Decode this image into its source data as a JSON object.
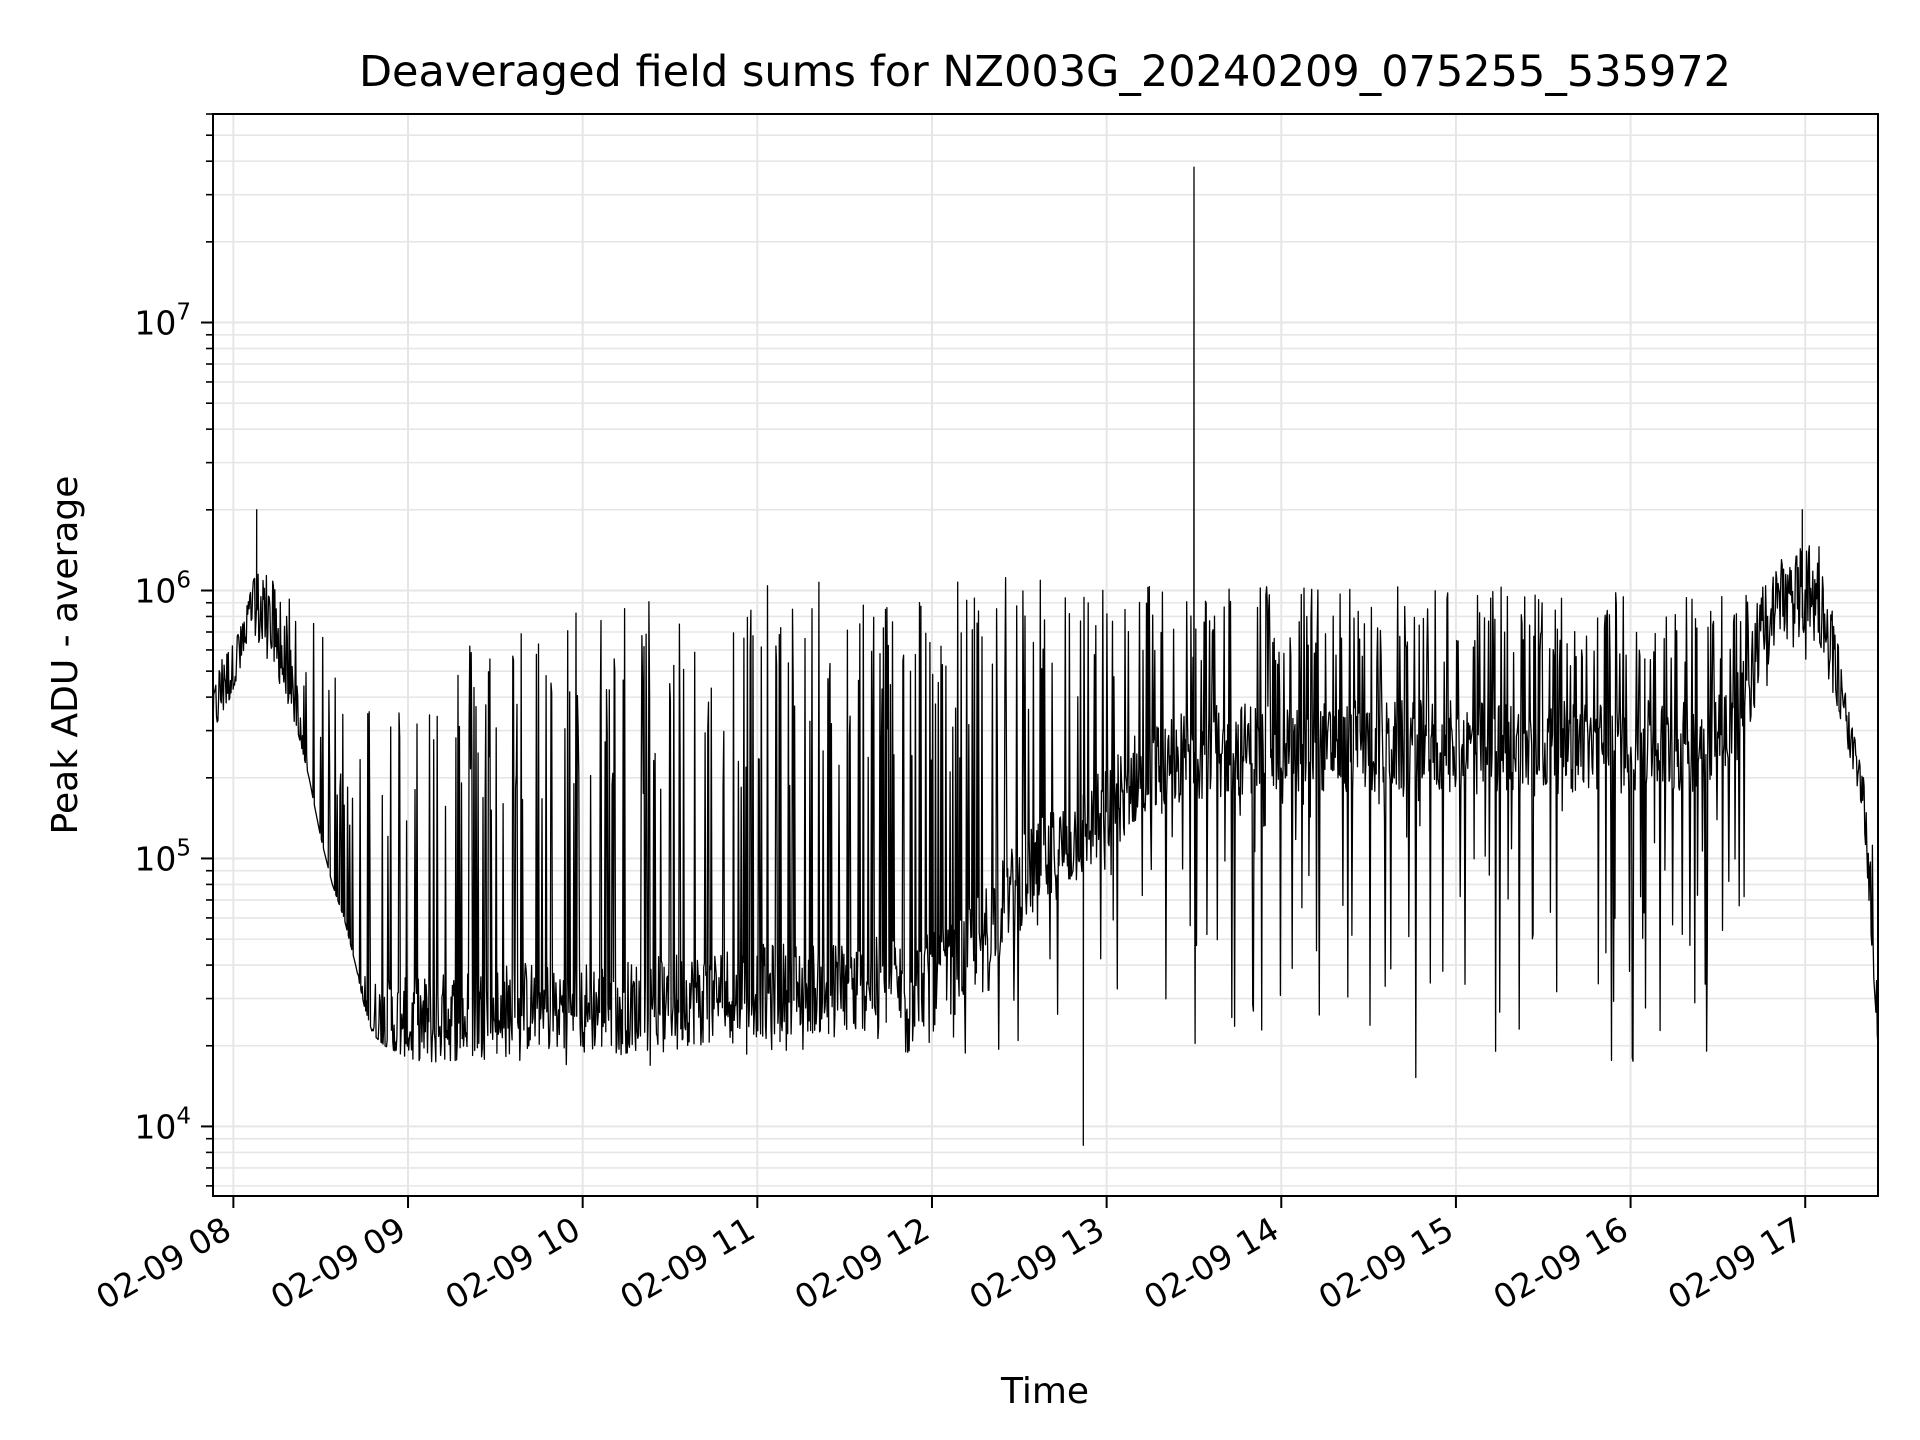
{
  "chart_data": {
    "type": "line",
    "title": "Deaveraged field sums for NZ003G_20240209_075255_535972",
    "xlabel": "Time",
    "ylabel": "Peak ADU - average",
    "yscale": "log",
    "ylim": [
      5500,
      60000000
    ],
    "xlim": [
      "2024-02-09 07:53",
      "2024-02-09 17:25"
    ],
    "x_tick_labels": [
      "02-09 08",
      "02-09 09",
      "02-09 10",
      "02-09 11",
      "02-09 12",
      "02-09 13",
      "02-09 14",
      "02-09 15",
      "02-09 16",
      "02-09 17"
    ],
    "y_tick_labels": [
      {
        "base": "10",
        "exp": "4",
        "value": 10000
      },
      {
        "base": "10",
        "exp": "5",
        "value": 100000
      },
      {
        "base": "10",
        "exp": "6",
        "value": 1000000
      },
      {
        "base": "10",
        "exp": "7",
        "value": 10000000
      }
    ],
    "grid": true,
    "line_color": "#000000",
    "series": [
      {
        "x": [
          "2024-02-09 07:53",
          "2024-02-09 07:56",
          "2024-02-09 07:59",
          "2024-02-09 08:02",
          "2024-02-09 08:05",
          "2024-02-09 08:07",
          "2024-02-09 08:10",
          "2024-02-09 08:14",
          "2024-02-09 08:18",
          "2024-02-09 08:22",
          "2024-02-09 08:26",
          "2024-02-09 08:30",
          "2024-02-09 08:34",
          "2024-02-09 08:38",
          "2024-02-09 08:42",
          "2024-02-09 08:45",
          "2024-02-09 08:48",
          "2024-02-09 08:52",
          "2024-02-09 08:56",
          "2024-02-09 09:00",
          "2024-02-09 09:10",
          "2024-02-09 09:20",
          "2024-02-09 09:30",
          "2024-02-09 09:40",
          "2024-02-09 09:50",
          "2024-02-09 10:00",
          "2024-02-09 10:10",
          "2024-02-09 10:20",
          "2024-02-09 10:30",
          "2024-02-09 10:40",
          "2024-02-09 10:50",
          "2024-02-09 11:00",
          "2024-02-09 11:10",
          "2024-02-09 11:20",
          "2024-02-09 11:30",
          "2024-02-09 11:40",
          "2024-02-09 11:50",
          "2024-02-09 12:00",
          "2024-02-09 12:10",
          "2024-02-09 12:20",
          "2024-02-09 12:30",
          "2024-02-09 12:40",
          "2024-02-09 12:50",
          "2024-02-09 13:00",
          "2024-02-09 13:10",
          "2024-02-09 13:20",
          "2024-02-09 13:30",
          "2024-02-09 13:40",
          "2024-02-09 13:50",
          "2024-02-09 14:00",
          "2024-02-09 14:10",
          "2024-02-09 14:20",
          "2024-02-09 14:30",
          "2024-02-09 14:40",
          "2024-02-09 14:50",
          "2024-02-09 15:00",
          "2024-02-09 15:10",
          "2024-02-09 15:20",
          "2024-02-09 15:30",
          "2024-02-09 15:40",
          "2024-02-09 15:50",
          "2024-02-09 16:00",
          "2024-02-09 16:10",
          "2024-02-09 16:20",
          "2024-02-09 16:30",
          "2024-02-09 16:40",
          "2024-02-09 16:45",
          "2024-02-09 16:50",
          "2024-02-09 16:55",
          "2024-02-09 17:00",
          "2024-02-09 17:05",
          "2024-02-09 17:10",
          "2024-02-09 17:15",
          "2024-02-09 17:20",
          "2024-02-09 17:25"
        ],
        "y_low": [
          300000,
          350000,
          400000,
          500000,
          600000,
          700000,
          600000,
          500000,
          400000,
          300000,
          200000,
          120000,
          80000,
          60000,
          40000,
          28000,
          22000,
          20000,
          19000,
          18000,
          17000,
          18000,
          17000,
          17000,
          17000,
          17000,
          16000,
          16000,
          18000,
          18000,
          18000,
          18000,
          18000,
          18000,
          18000,
          18000,
          18000,
          17000,
          17000,
          17000,
          18000,
          18000,
          17000,
          17000,
          18000,
          18000,
          17000,
          17000,
          16000,
          16000,
          16000,
          16000,
          16000,
          15000,
          15000,
          16000,
          16000,
          16000,
          16000,
          17000,
          16000,
          16000,
          16000,
          16000,
          20000,
          40000,
          400000,
          500000,
          500000,
          500000,
          600000,
          400000,
          250000,
          150000,
          20000
        ],
        "y_high": [
          400000,
          550000,
          600000,
          700000,
          900000,
          1100000,
          1200000,
          1100000,
          1000000,
          900000,
          800000,
          700000,
          600000,
          500000,
          500000,
          400000,
          500000,
          400000,
          450000,
          500000,
          600000,
          700000,
          800000,
          850000,
          900000,
          950000,
          1000000,
          1000000,
          1000000,
          1000000,
          1050000,
          1050000,
          1050000,
          1100000,
          1100000,
          1100000,
          1100000,
          1150000,
          1150000,
          1150000,
          1150000,
          1100000,
          1100000,
          1100000,
          1100000,
          1100000,
          1100000,
          1100000,
          1100000,
          1050000,
          1050000,
          1050000,
          1050000,
          1050000,
          1050000,
          1050000,
          1050000,
          1050000,
          1050000,
          1000000,
          1000000,
          1000000,
          1000000,
          1000000,
          1000000,
          1000000,
          1200000,
          1400000,
          1500000,
          1600000,
          1500000,
          800000,
          350000,
          200000,
          80000
        ],
        "y_base": [
          350000,
          450000,
          500000,
          600000,
          700000,
          900000,
          800000,
          700000,
          500000,
          300000,
          150000,
          80000,
          50000,
          35000,
          28000,
          25000,
          24000,
          24000,
          24000,
          24000,
          25000,
          26000,
          27000,
          28000,
          28000,
          28000,
          28000,
          28000,
          30000,
          30000,
          32000,
          32000,
          33000,
          33000,
          33000,
          34000,
          34000,
          35000,
          40000,
          60000,
          80000,
          100000,
          120000,
          150000,
          200000,
          220000,
          250000,
          250000,
          260000,
          260000,
          260000,
          260000,
          260000,
          260000,
          260000,
          260000,
          260000,
          260000,
          260000,
          260000,
          260000,
          260000,
          260000,
          260000,
          300000,
          400000,
          700000,
          800000,
          900000,
          1000000,
          900000,
          500000,
          250000,
          150000,
          20000
        ]
      }
    ],
    "annotations": [
      {
        "x": "2024-02-09 13:30",
        "y": 38000000,
        "note": "spike"
      },
      {
        "x": "2024-02-09 12:52",
        "y": 8500,
        "note": "dip"
      },
      {
        "x": "2024-02-09 08:08",
        "y": 2000000,
        "note": "peak"
      },
      {
        "x": "2024-02-09 16:59",
        "y": 2000000,
        "note": "peak"
      }
    ]
  }
}
